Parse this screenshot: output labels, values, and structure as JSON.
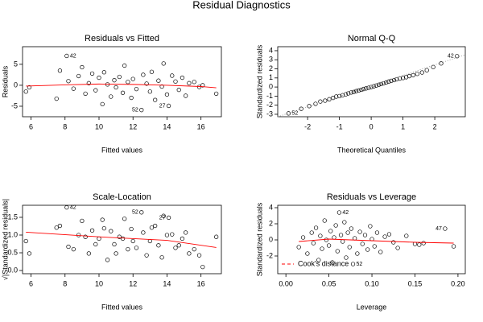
{
  "title": "Residual Diagnostics",
  "chart_data": [
    {
      "type": "scatter",
      "title": "Residuals vs Fitted",
      "xlabel": "Fitted values",
      "ylabel": "Residuals",
      "xlim": [
        5.5,
        17.2
      ],
      "ylim": [
        -7.5,
        9.2
      ],
      "xticks": [
        6,
        8,
        10,
        12,
        14,
        16
      ],
      "yticks": [
        -5,
        0,
        5
      ],
      "x": [
        5.7,
        5.9,
        7.5,
        7.7,
        8.1,
        8.2,
        8.5,
        8.8,
        9.0,
        9.2,
        9.4,
        9.6,
        9.8,
        10.0,
        10.2,
        10.3,
        10.5,
        10.7,
        10.9,
        11.0,
        11.2,
        11.4,
        11.5,
        11.7,
        11.9,
        12.0,
        12.2,
        12.5,
        12.6,
        12.8,
        13.0,
        13.1,
        13.3,
        13.5,
        13.7,
        13.8,
        14.0,
        14.1,
        14.3,
        14.5,
        14.7,
        14.9,
        15.1,
        15.3,
        15.6,
        15.9,
        16.1,
        16.9
      ],
      "values": [
        -1.5,
        -0.5,
        -3.2,
        3.5,
        7.0,
        1.0,
        -0.8,
        2.2,
        4.3,
        -2.0,
        0.5,
        2.8,
        -1.2,
        1.8,
        -4.5,
        3.1,
        0.2,
        -2.7,
        1.2,
        -0.5,
        2.0,
        -1.8,
        4.7,
        0.8,
        -3.0,
        1.5,
        -0.9,
        -5.9,
        2.5,
        0.4,
        -1.5,
        3.2,
        -3.5,
        1.1,
        -0.3,
        5.2,
        -2.2,
        -4.9,
        2.3,
        0.9,
        -1.1,
        1.8,
        -2.5,
        0.5,
        0.8,
        -0.4,
        0.0,
        -2.0
      ],
      "lines": [
        {
          "color": "#ff0000",
          "style": "solid",
          "x": [
            5.7,
            8,
            10,
            12,
            14,
            16,
            16.9
          ],
          "values": [
            -0.2,
            0.1,
            0.3,
            0.2,
            0.0,
            -0.3,
            -0.6
          ]
        }
      ],
      "annotations": [
        {
          "text": "42",
          "x": 8.1,
          "y": 7.0
        },
        {
          "text": "52",
          "x": 12.5,
          "y": -5.9
        },
        {
          "text": "27",
          "x": 14.1,
          "y": -4.9
        }
      ]
    },
    {
      "type": "scatter",
      "title": "Normal Q-Q",
      "xlabel": "Theoretical Quantiles",
      "ylabel": "Standardized residuals",
      "xlim": [
        -2.94,
        2.96
      ],
      "ylim": [
        -3.27,
        4.44
      ],
      "xticks": [
        -2,
        -1,
        0,
        1,
        2
      ],
      "yticks": [
        -3,
        -2,
        -1,
        0,
        1,
        2,
        3,
        4
      ],
      "x": [
        -2.6,
        -2.2,
        -1.95,
        -1.75,
        -1.6,
        -1.45,
        -1.32,
        -1.2,
        -1.1,
        -1.0,
        -0.9,
        -0.8,
        -0.72,
        -0.63,
        -0.55,
        -0.47,
        -0.39,
        -0.31,
        -0.24,
        -0.16,
        -0.08,
        0,
        0.08,
        0.16,
        0.24,
        0.31,
        0.39,
        0.47,
        0.55,
        0.63,
        0.72,
        0.8,
        0.9,
        1.0,
        1.1,
        1.2,
        1.32,
        1.45,
        1.6,
        1.75,
        1.95,
        2.2,
        2.7
      ],
      "values": [
        -2.9,
        -2.4,
        -2.1,
        -1.85,
        -1.6,
        -1.5,
        -1.35,
        -1.2,
        -1.05,
        -1.0,
        -0.9,
        -0.8,
        -0.7,
        -0.6,
        -0.55,
        -0.45,
        -0.38,
        -0.3,
        -0.22,
        -0.15,
        -0.08,
        0,
        0.08,
        0.16,
        0.25,
        0.33,
        0.41,
        0.5,
        0.6,
        0.68,
        0.76,
        0.85,
        0.93,
        1.0,
        1.08,
        1.2,
        1.3,
        1.45,
        1.6,
        1.85,
        2.2,
        2.6,
        3.4
      ],
      "lines": [
        {
          "color": "#999999",
          "style": "dotted",
          "x": [
            -2.94,
            2.96
          ],
          "values": [
            -3.27,
            3.55
          ]
        }
      ],
      "annotations": [
        {
          "text": "52",
          "x": -2.6,
          "y": -2.9
        },
        {
          "text": "42",
          "x": 2.7,
          "y": 3.4
        }
      ]
    },
    {
      "type": "scatter",
      "title": "Scale-Location",
      "xlabel": "Fitted values",
      "ylabel": "√|Standardized residuals|",
      "xlim": [
        5.5,
        17.2
      ],
      "ylim": [
        -0.09,
        1.84
      ],
      "xticks": [
        6,
        8,
        10,
        12,
        14,
        16
      ],
      "yticks": [
        {
          "value": 0,
          "label": "0.0"
        },
        {
          "value": 0.5,
          "label": "0.5"
        },
        {
          "value": 1,
          "label": "1.0"
        },
        {
          "value": 1.5,
          "label": "1.5"
        }
      ],
      "x": [
        5.7,
        5.9,
        7.5,
        7.7,
        8.1,
        8.2,
        8.5,
        8.8,
        9.0,
        9.2,
        9.4,
        9.6,
        9.8,
        10.0,
        10.2,
        10.3,
        10.5,
        10.7,
        10.9,
        11.0,
        11.2,
        11.4,
        11.5,
        11.7,
        11.9,
        12.0,
        12.2,
        12.5,
        12.6,
        12.8,
        13.0,
        13.1,
        13.3,
        13.5,
        13.7,
        13.8,
        14.0,
        14.1,
        14.3,
        14.5,
        14.7,
        14.9,
        15.1,
        15.3,
        15.6,
        15.9,
        16.1,
        16.9
      ],
      "values": [
        0.83,
        0.48,
        1.21,
        1.26,
        1.78,
        0.67,
        0.6,
        1.0,
        1.4,
        0.95,
        0.48,
        1.13,
        0.74,
        0.9,
        1.43,
        1.19,
        0.3,
        1.11,
        0.74,
        0.48,
        0.95,
        0.9,
        1.46,
        0.6,
        1.17,
        0.83,
        0.64,
        1.64,
        1.07,
        0.43,
        0.83,
        1.21,
        1.26,
        0.71,
        0.37,
        1.54,
        1.0,
        1.49,
        1.02,
        0.64,
        0.71,
        0.9,
        1.07,
        0.48,
        0.6,
        0.43,
        0.1,
        0.95
      ],
      "lines": [
        {
          "color": "#ff0000",
          "style": "solid",
          "x": [
            5.7,
            10,
            14,
            16.9
          ],
          "values": [
            1.08,
            0.95,
            0.85,
            0.65
          ]
        }
      ],
      "annotations": [
        {
          "text": "42",
          "x": 8.1,
          "y": 1.78
        },
        {
          "text": "52",
          "x": 12.5,
          "y": 1.64
        },
        {
          "text": "27",
          "x": 14.1,
          "y": 1.49
        }
      ]
    },
    {
      "type": "scatter",
      "title": "Residuals vs Leverage",
      "xlabel": "Leverage",
      "ylabel": "Standardized residuals",
      "xlim": [
        -0.0095,
        0.2085
      ],
      "ylim": [
        -4.2,
        4.3
      ],
      "xticks": [
        {
          "value": 0,
          "label": "0.00"
        },
        {
          "value": 0.05,
          "label": "0.05"
        },
        {
          "value": 0.1,
          "label": "0.10"
        },
        {
          "value": 0.15,
          "label": "0.15"
        },
        {
          "value": 0.2,
          "label": "0.20"
        }
      ],
      "yticks": [
        -2,
        0,
        2,
        4
      ],
      "x": [
        0.015,
        0.02,
        0.025,
        0.03,
        0.032,
        0.035,
        0.038,
        0.04,
        0.042,
        0.045,
        0.047,
        0.05,
        0.052,
        0.054,
        0.056,
        0.058,
        0.06,
        0.062,
        0.064,
        0.066,
        0.068,
        0.07,
        0.072,
        0.074,
        0.076,
        0.078,
        0.08,
        0.083,
        0.086,
        0.089,
        0.092,
        0.095,
        0.098,
        0.1,
        0.103,
        0.106,
        0.11,
        0.115,
        0.12,
        0.125,
        0.13,
        0.14,
        0.15,
        0.155,
        0.16,
        0.185,
        0.195
      ],
      "values": [
        -0.9,
        0.3,
        -1.7,
        0.9,
        -0.4,
        1.5,
        -2.5,
        0.5,
        -1.1,
        2.4,
        0,
        -0.7,
        1.1,
        -2.8,
        0.3,
        1.8,
        -1.4,
        3.4,
        0.6,
        -0.2,
        2.2,
        -2.2,
        0.9,
        -0.9,
        1.4,
        -3.0,
        0.2,
        -1.7,
        1.0,
        -0.5,
        0.6,
        -1.2,
        1.7,
        0.1,
        -0.8,
        0.9,
        -1.5,
        0.4,
        0.7,
        -0.3,
        -1.0,
        0.5,
        -0.5,
        -0.6,
        -0.4,
        1.4,
        -0.8
      ],
      "lines": [
        {
          "color": "#ff0000",
          "style": "solid",
          "x": [
            0.015,
            0.05,
            0.1,
            0.15,
            0.195
          ],
          "values": [
            -0.2,
            0.1,
            -0.1,
            -0.3,
            -0.4
          ]
        }
      ],
      "annotations": [
        {
          "text": "42",
          "x": 0.062,
          "y": 3.4
        },
        {
          "text": "52",
          "x": 0.078,
          "y": -3.0
        },
        {
          "text": "47",
          "x": 0.185,
          "y": 1.4
        }
      ],
      "legend": {
        "label": "Cook's distance",
        "color": "#ff0000",
        "style": "dashed",
        "position": "bottom-left"
      }
    }
  ]
}
